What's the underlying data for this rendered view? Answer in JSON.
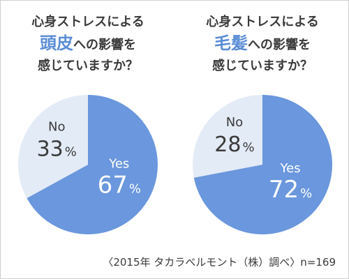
{
  "charts": [
    {
      "title_line1": "心身ストレスによる",
      "title_highlight": "頭皮",
      "title_line2_rest": "への影響を",
      "title_line3": "感じていますか？"
    },
    {
      "title_line1": "心身ストレスによる",
      "title_highlight": "毛髪",
      "title_line2_rest": "への影響を",
      "title_line3": "感じていますか？"
    }
  ],
  "source": "〈2015年 タカラベルモント（株）調べ〉n=169",
  "colors": {
    "yes": "#6a97dd",
    "no": "#e3ebf6",
    "highlight": "#5b8dd6",
    "text": "#3a3a3a",
    "yes_text": "#ffffff"
  },
  "chart_data": [
    {
      "type": "pie",
      "title": "心身ストレスによる頭皮への影響を感じていますか？",
      "slices": [
        {
          "label": "Yes",
          "value": 67,
          "value_label": "67",
          "unit": "%"
        },
        {
          "label": "No",
          "value": 33,
          "value_label": "33",
          "unit": "%"
        }
      ]
    },
    {
      "type": "pie",
      "title": "心身ストレスによる毛髪への影響を感じていますか？",
      "slices": [
        {
          "label": "Yes",
          "value": 72,
          "value_label": "72",
          "unit": "%"
        },
        {
          "label": "No",
          "value": 28,
          "value_label": "28",
          "unit": "%"
        }
      ]
    }
  ]
}
